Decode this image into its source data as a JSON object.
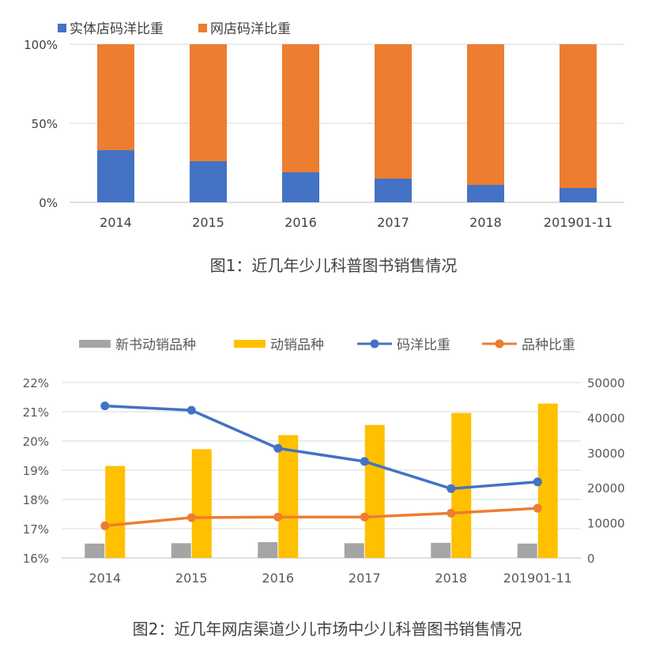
{
  "chart_data": [
    {
      "type": "stacked-bar-100",
      "caption": "图1：近几年少儿科普图书销售情况",
      "categories": [
        "2014",
        "2015",
        "2016",
        "2017",
        "2018",
        "201901-11"
      ],
      "series": [
        {
          "name": "实体店码洋比重",
          "color": "#4472C4",
          "values": [
            33,
            26,
            19,
            15,
            11,
            9
          ]
        },
        {
          "name": "网店码洋比重",
          "color": "#ED7D31",
          "values": [
            67,
            74,
            81,
            85,
            89,
            91
          ]
        }
      ],
      "y_ticks": [
        "0%",
        "50%",
        "100%"
      ],
      "ylim": [
        0,
        100
      ],
      "grid": true,
      "legend_position": "top-left"
    },
    {
      "type": "combo-bar-line",
      "caption": "图2：近几年网店渠道少儿市场中少儿科普图书销售情况",
      "categories": [
        "2014",
        "2015",
        "2016",
        "2017",
        "2018",
        "201901-11"
      ],
      "bar_series": [
        {
          "name": "新书动销品种",
          "color": "#A5A5A5",
          "axis": "right",
          "values": [
            4100,
            4200,
            4500,
            4200,
            4300,
            4100
          ]
        },
        {
          "name": "动销品种",
          "color": "#FFC000",
          "axis": "right",
          "values": [
            26200,
            31000,
            35000,
            37900,
            41300,
            44000
          ]
        }
      ],
      "line_series": [
        {
          "name": "码洋比重",
          "color": "#4472C4",
          "axis": "left",
          "values": [
            21.2,
            21.05,
            19.75,
            19.3,
            18.37,
            18.6
          ]
        },
        {
          "name": "品种比重",
          "color": "#ED7D31",
          "axis": "left",
          "values": [
            17.1,
            17.38,
            17.4,
            17.4,
            17.53,
            17.7
          ]
        }
      ],
      "left_ticks": [
        "16%",
        "17%",
        "18%",
        "19%",
        "20%",
        "21%",
        "22%"
      ],
      "left_lim": [
        16,
        22
      ],
      "right_ticks": [
        "0",
        "10000",
        "20000",
        "30000",
        "40000",
        "50000"
      ],
      "right_lim": [
        0,
        50000
      ],
      "grid": true,
      "legend_position": "top"
    }
  ]
}
